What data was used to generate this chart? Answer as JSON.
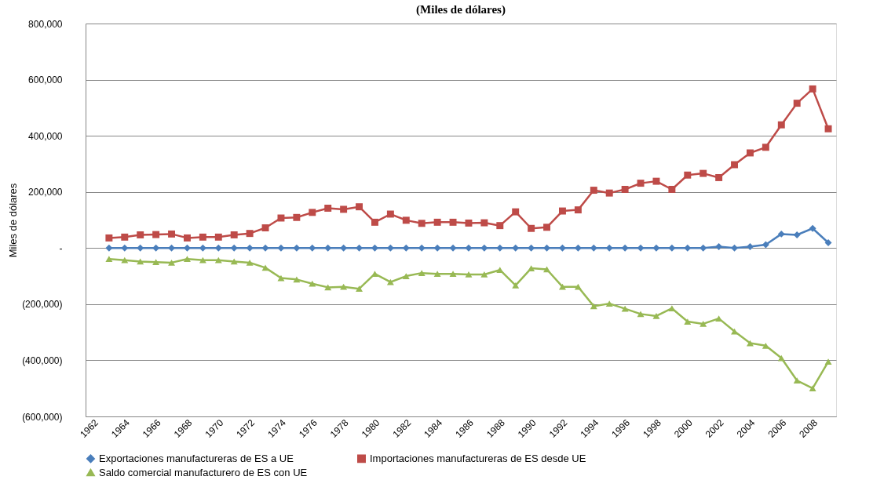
{
  "chart_data": {
    "type": "line",
    "title": "(Miles de dólares)",
    "ylabel": "Miles de dólares",
    "categories": [
      "1962",
      null,
      "1964",
      null,
      "1966",
      null,
      "1968",
      null,
      "1970",
      null,
      "1972",
      null,
      "1974",
      null,
      "1976",
      null,
      "1978",
      null,
      "1980",
      null,
      "1982",
      null,
      "1984",
      null,
      "1986",
      null,
      "1988",
      null,
      "1990",
      null,
      "1992",
      null,
      "1994",
      null,
      "1996",
      null,
      "1998",
      null,
      "2000",
      null,
      "2002",
      null,
      "2004",
      null,
      "2006",
      null,
      "2008",
      null
    ],
    "ylim": [
      -600000,
      800000
    ],
    "yticks": [
      {
        "value": -600000,
        "label": "(600,000)"
      },
      {
        "value": -400000,
        "label": "(400,000)"
      },
      {
        "value": -200000,
        "label": "(200,000)"
      },
      {
        "value": 0,
        "label": "-"
      },
      {
        "value": 200000,
        "label": "200,000"
      },
      {
        "value": 400000,
        "label": "400,000"
      },
      {
        "value": 600000,
        "label": "600,000"
      },
      {
        "value": 800000,
        "label": "800,000"
      }
    ],
    "grid": "y",
    "legend": "bottom",
    "line_style": "solid",
    "series": [
      {
        "name": "Exportaciones manufactureras de ES a UE",
        "color": "#4a7ebb",
        "marker": "diamond",
        "values": [
          null,
          0,
          0,
          0,
          0,
          0,
          0,
          0,
          0,
          0,
          0,
          0,
          0,
          0,
          0,
          0,
          0,
          0,
          0,
          0,
          0,
          0,
          0,
          0,
          0,
          0,
          0,
          0,
          0,
          0,
          0,
          0,
          0,
          0,
          0,
          0,
          0,
          0,
          0,
          0,
          5000,
          0,
          5000,
          12000,
          50000,
          47000,
          70000,
          19000
        ]
      },
      {
        "name": "Importaciones manufactureras de ES desde UE",
        "color": "#be4b48",
        "marker": "square",
        "values": [
          null,
          36000,
          39000,
          47000,
          48000,
          50000,
          36000,
          39000,
          39000,
          47000,
          52000,
          72000,
          107000,
          109000,
          127000,
          142000,
          138000,
          147000,
          92000,
          121000,
          99000,
          88000,
          92000,
          92000,
          89000,
          90000,
          80000,
          129000,
          70000,
          74000,
          132000,
          136000,
          206000,
          196000,
          209000,
          231000,
          238000,
          209000,
          260000,
          266000,
          251000,
          297000,
          339000,
          359000,
          439000,
          516000,
          567000,
          425000
        ]
      },
      {
        "name": "Saldo comercial manufacturero de ES con UE",
        "color": "#98b954",
        "marker": "triangle",
        "values": [
          null,
          -39000,
          -43000,
          -48000,
          -50000,
          -52000,
          -39000,
          -43000,
          -43000,
          -48000,
          -52000,
          -70000,
          -107000,
          -112000,
          -127000,
          -140000,
          -138000,
          -145000,
          -92000,
          -121000,
          -100000,
          -89000,
          -92000,
          -92000,
          -94000,
          -94000,
          -78000,
          -133000,
          -72000,
          -76000,
          -138000,
          -138000,
          -207000,
          -198000,
          -216000,
          -235000,
          -242000,
          -215000,
          -262000,
          -270000,
          -251000,
          -297000,
          -339000,
          -348000,
          -392000,
          -472000,
          -500000,
          -405000
        ]
      }
    ]
  }
}
